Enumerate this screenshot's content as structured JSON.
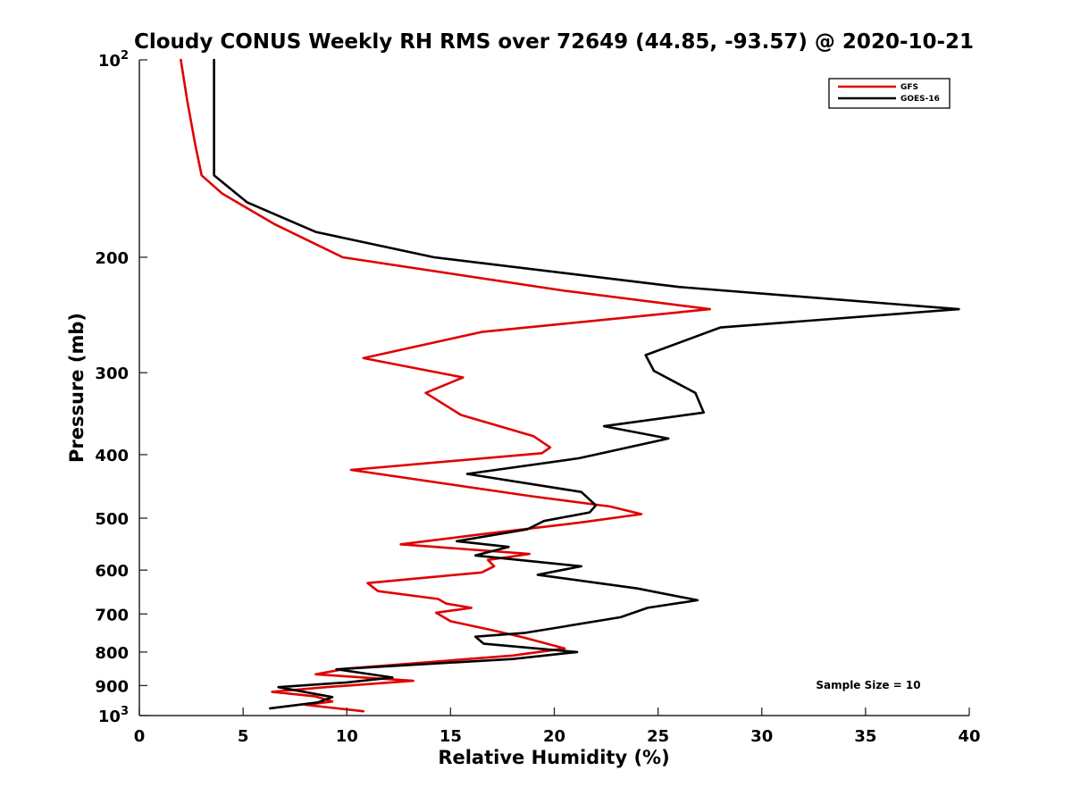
{
  "chart_data": {
    "type": "line",
    "title": "Cloudy CONUS Weekly RH RMS over 72649 (44.85, -93.57) @ 2020-10-21",
    "xlabel": "Relative Humidity (%)",
    "ylabel": "Pressure (mb)",
    "xlim": [
      0,
      40
    ],
    "ylim": [
      100,
      1000
    ],
    "y_scale": "log",
    "y_reversed": true,
    "grid": false,
    "legend_position": "top-right",
    "x_ticks": [
      "0",
      "5",
      "10",
      "15",
      "20",
      "25",
      "30",
      "35",
      "40"
    ],
    "y_ticks": [
      {
        "value": 100,
        "base": "10",
        "exp": "2"
      },
      {
        "value": 200,
        "label": "200"
      },
      {
        "value": 300,
        "label": "300"
      },
      {
        "value": 400,
        "label": "400"
      },
      {
        "value": 500,
        "label": "500"
      },
      {
        "value": 600,
        "label": "600"
      },
      {
        "value": 700,
        "label": "700"
      },
      {
        "value": 800,
        "label": "800"
      },
      {
        "value": 900,
        "label": "900"
      },
      {
        "value": 1000,
        "base": "10",
        "exp": "3"
      }
    ],
    "annotation": "Sample Size = 10",
    "series": [
      {
        "name": "GFS",
        "color": "#e00000",
        "points": [
          [
            2.0,
            100
          ],
          [
            2.3,
            115
          ],
          [
            2.7,
            135
          ],
          [
            3.0,
            150
          ],
          [
            4.0,
            160
          ],
          [
            6.5,
            178
          ],
          [
            9.8,
            200
          ],
          [
            20.5,
            225
          ],
          [
            27.5,
            240
          ],
          [
            16.5,
            260
          ],
          [
            10.8,
            285
          ],
          [
            15.6,
            305
          ],
          [
            13.8,
            322
          ],
          [
            15.5,
            348
          ],
          [
            19.0,
            375
          ],
          [
            19.8,
            390
          ],
          [
            19.4,
            398
          ],
          [
            10.2,
            422
          ],
          [
            18.9,
            463
          ],
          [
            22.7,
            480
          ],
          [
            24.2,
            493
          ],
          [
            21.2,
            508
          ],
          [
            16.3,
            530
          ],
          [
            12.6,
            548
          ],
          [
            18.8,
            567
          ],
          [
            16.8,
            579
          ],
          [
            17.1,
            592
          ],
          [
            16.5,
            605
          ],
          [
            11.0,
            628
          ],
          [
            11.5,
            646
          ],
          [
            14.4,
            664
          ],
          [
            14.8,
            675
          ],
          [
            16.0,
            685
          ],
          [
            14.3,
            697
          ],
          [
            15.0,
            718
          ],
          [
            17.1,
            742
          ],
          [
            18.5,
            760
          ],
          [
            20.5,
            790
          ],
          [
            18.0,
            810
          ],
          [
            10.0,
            848
          ],
          [
            8.5,
            865
          ],
          [
            13.2,
            885
          ],
          [
            9.0,
            905
          ],
          [
            6.4,
            920
          ],
          [
            8.5,
            935
          ],
          [
            9.3,
            952
          ],
          [
            8.0,
            963
          ],
          [
            10.8,
            985
          ]
        ]
      },
      {
        "name": "GOES-16",
        "color": "#000000",
        "points": [
          [
            3.6,
            100
          ],
          [
            3.6,
            150
          ],
          [
            5.2,
            165
          ],
          [
            8.5,
            183
          ],
          [
            14.2,
            200
          ],
          [
            26.0,
            222
          ],
          [
            39.5,
            240
          ],
          [
            28.0,
            256
          ],
          [
            24.4,
            282
          ],
          [
            24.8,
            298
          ],
          [
            26.8,
            322
          ],
          [
            27.2,
            345
          ],
          [
            22.4,
            362
          ],
          [
            25.5,
            378
          ],
          [
            21.2,
            405
          ],
          [
            15.8,
            428
          ],
          [
            21.3,
            456
          ],
          [
            22.0,
            478
          ],
          [
            21.7,
            490
          ],
          [
            19.5,
            505
          ],
          [
            18.7,
            520
          ],
          [
            15.3,
            542
          ],
          [
            17.8,
            553
          ],
          [
            16.2,
            570
          ],
          [
            21.3,
            592
          ],
          [
            19.2,
            610
          ],
          [
            24.0,
            640
          ],
          [
            26.9,
            667
          ],
          [
            24.5,
            685
          ],
          [
            23.2,
            708
          ],
          [
            20.4,
            732
          ],
          [
            18.6,
            748
          ],
          [
            16.2,
            758
          ],
          [
            16.6,
            777
          ],
          [
            21.1,
            800
          ],
          [
            18.0,
            820
          ],
          [
            9.5,
            850
          ],
          [
            12.2,
            875
          ],
          [
            10.0,
            890
          ],
          [
            6.7,
            905
          ],
          [
            9.3,
            937
          ],
          [
            8.6,
            955
          ],
          [
            6.3,
            975
          ]
        ]
      }
    ]
  }
}
